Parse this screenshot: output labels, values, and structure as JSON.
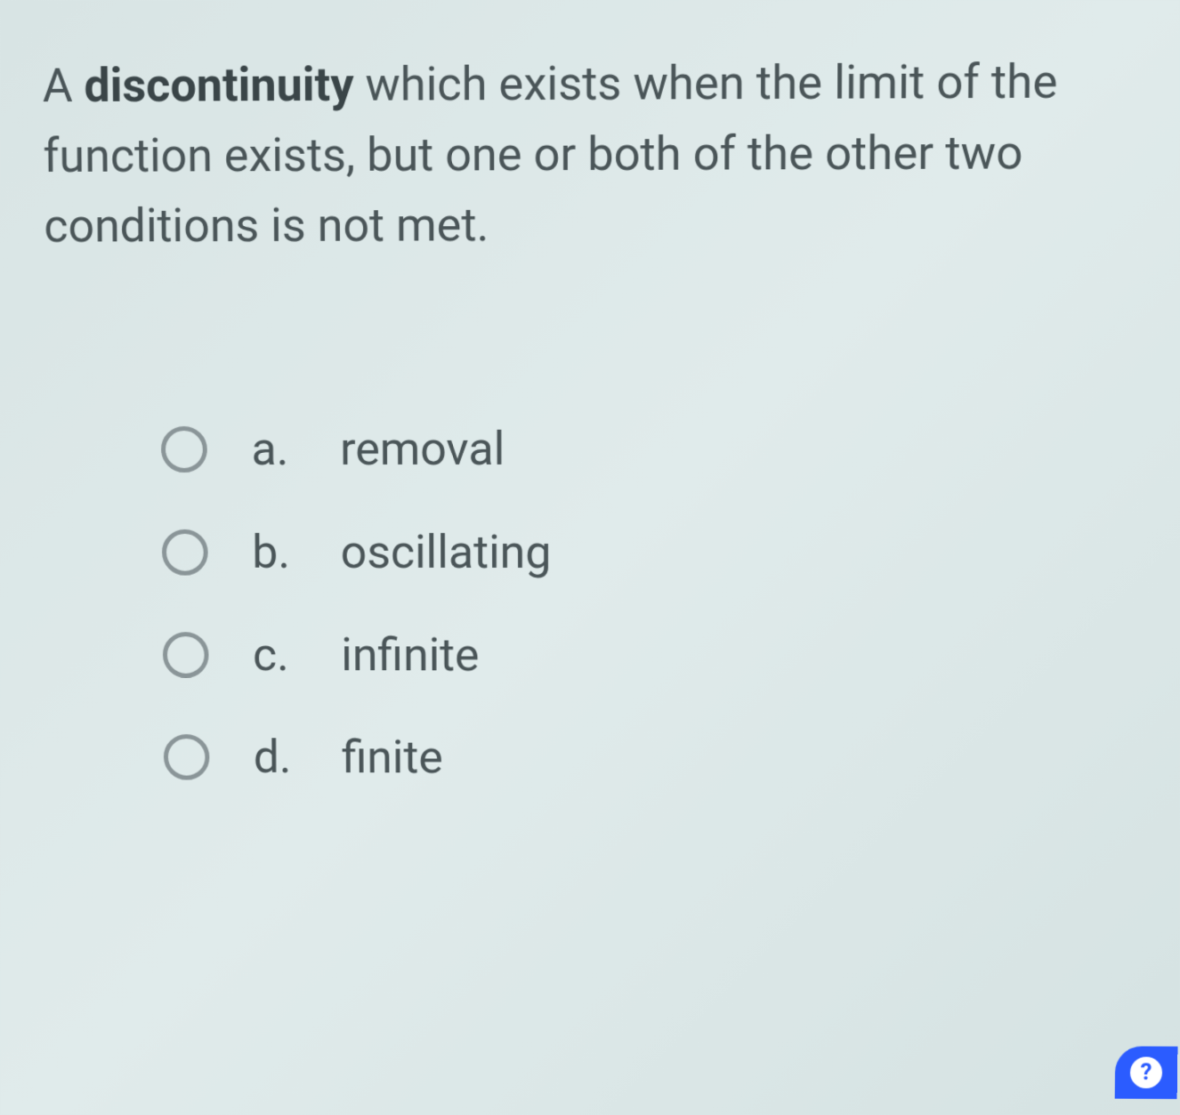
{
  "question": {
    "prefix": "A ",
    "bold_word": "discontinuity",
    "suffix": " which exists when the limit of the function exists, but one or both of the other two conditions is not met."
  },
  "options": [
    {
      "letter": "a.",
      "text": "removal"
    },
    {
      "letter": "b.",
      "text": "oscillating"
    },
    {
      "letter": "c.",
      "text": "infinite"
    },
    {
      "letter": "d.",
      "text": "finite"
    }
  ],
  "help_label": "?",
  "colors": {
    "text": "#4a5558",
    "radio_border": "#8a9598",
    "help_bg": "#2b5cff",
    "help_fg": "#ffffff",
    "background": "#dce7e7"
  },
  "typography": {
    "question_fontsize": 52,
    "option_fontsize": 52
  }
}
